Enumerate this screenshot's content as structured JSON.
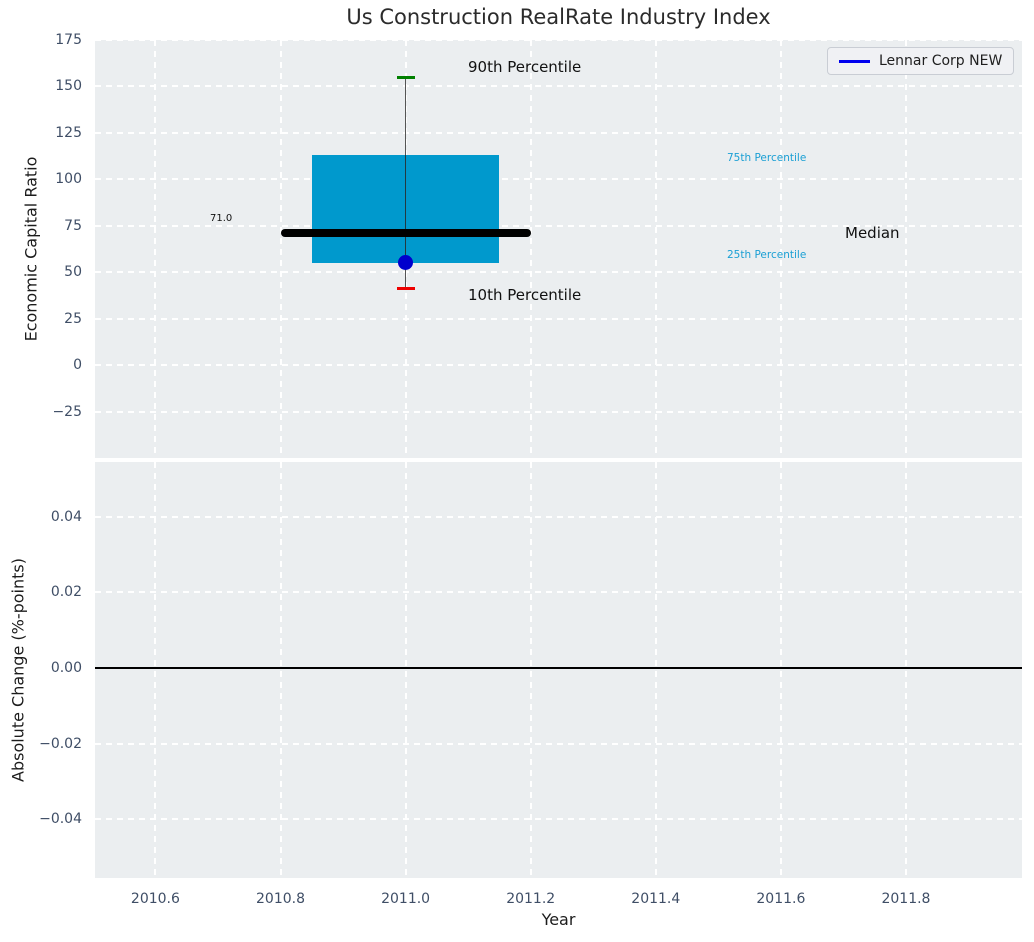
{
  "chart_data": [
    {
      "type": "boxplot",
      "title": "Us Construction RealRate Industry Index",
      "ylabel": "Economic Capital Ratio",
      "ylim": [
        -50,
        175
      ],
      "yticks": [
        175,
        150,
        125,
        100,
        75,
        50,
        25,
        0,
        -25
      ],
      "ytick_labels": [
        "175",
        "150",
        "125",
        "100",
        "75",
        "50",
        "25",
        "0",
        "−25"
      ],
      "grid": true,
      "legend": {
        "position": "upper right",
        "entries": [
          {
            "label": "Lennar Corp NEW",
            "color": "#0000ee"
          }
        ]
      },
      "box": {
        "x": 2011.0,
        "p10": 41,
        "q1": 55,
        "median": 71,
        "q3": 113,
        "p90": 155,
        "median_label": "71.0",
        "box_color": "#0099cd",
        "median_color": "#000000",
        "p90_cap_color": "#008000",
        "p10_cap_color": "#ee0000",
        "whisker_color": "#555555",
        "box_x_range": [
          2010.85,
          2011.15
        ],
        "median_x_range": [
          2010.8,
          2011.2
        ],
        "cap_x_range": [
          2010.9855,
          2011.0145
        ]
      },
      "points": [
        {
          "name": "Lennar Corp NEW",
          "x": 2011.0,
          "y": 55.5,
          "color": "#0000cd"
        }
      ],
      "labels": {
        "p90": "90th Percentile",
        "p10": "10th Percentile",
        "p75": "75th Percentile",
        "p25": "25th Percentile",
        "median": "Median",
        "median_value": "71.0"
      }
    },
    {
      "type": "line",
      "ylabel": "Absolute Change (%-points)",
      "ylim": [
        -0.0555,
        0.0545
      ],
      "yticks": [
        0.04,
        0.02,
        0.0,
        -0.02,
        -0.04
      ],
      "ytick_labels": [
        "0.04",
        "0.02",
        "0.00",
        "−0.02",
        "−0.04"
      ],
      "grid": true,
      "zero_line": {
        "y": 0.0,
        "color": "#000000"
      }
    }
  ],
  "x_axis": {
    "xlabel": "Year",
    "xlim": [
      2010.5034,
      2011.9855
    ],
    "xticks": [
      2010.6,
      2010.8,
      2011.0,
      2011.2,
      2011.4,
      2011.6,
      2011.8
    ],
    "xtick_labels": [
      "2010.6",
      "2010.8",
      "2011.0",
      "2011.2",
      "2011.4",
      "2011.6",
      "2011.8"
    ]
  },
  "style": {
    "axes_background": "#ebeef0",
    "gridline_color": "#ffffff",
    "tick_label_color": "#3f4e66",
    "percentile_label_color": "#1a9fd4"
  }
}
